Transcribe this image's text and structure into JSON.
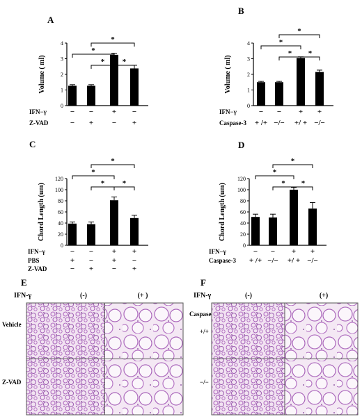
{
  "chart_data": [
    {
      "type": "bar",
      "panel": "A",
      "ylabel": "Volume ( ml)",
      "ylim": [
        0,
        4
      ],
      "yticks": [
        0,
        1,
        2,
        3,
        4
      ],
      "values": [
        1.27,
        1.27,
        3.25,
        2.38
      ],
      "errors": [
        0.07,
        0.07,
        0.1,
        0.2
      ],
      "rows": [
        {
          "label": "IFN−γ",
          "marks": [
            "−",
            "−",
            "+",
            "−"
          ]
        },
        {
          "label": "Z-VAD",
          "marks": [
            "−",
            "+",
            "−",
            "+"
          ]
        }
      ],
      "significance": [
        {
          "from": 0,
          "to": 2,
          "label": "*"
        },
        {
          "from": 1,
          "to": 2,
          "label": "*"
        },
        {
          "from": 2,
          "to": 3,
          "label": "*"
        },
        {
          "from": 1,
          "to": 3,
          "label": "*"
        }
      ]
    },
    {
      "type": "bar",
      "panel": "B",
      "ylabel": "Volume ( ml)",
      "ylim": [
        0,
        4
      ],
      "yticks": [
        0,
        1,
        2,
        3,
        4
      ],
      "values": [
        1.5,
        1.5,
        3.05,
        2.15
      ],
      "errors": [
        0.05,
        0.05,
        0.07,
        0.12
      ],
      "rows": [
        {
          "label": "IFN−γ",
          "marks": [
            "−",
            "−",
            "+",
            "+"
          ]
        },
        {
          "label": "Caspase-3",
          "marks": [
            "+ /+",
            "−/−",
            "+/ +",
            "−/−"
          ]
        }
      ],
      "significance": [
        {
          "from": 0,
          "to": 2,
          "label": "*"
        },
        {
          "from": 1,
          "to": 2,
          "label": "*"
        },
        {
          "from": 2,
          "to": 3,
          "label": "*"
        },
        {
          "from": 1,
          "to": 3,
          "label": "*"
        }
      ]
    },
    {
      "type": "bar",
      "panel": "C",
      "ylabel": "Chord Length (um)",
      "ylim": [
        0,
        120
      ],
      "yticks": [
        0,
        20,
        40,
        60,
        80,
        100,
        120
      ],
      "values": [
        39,
        38,
        81,
        49
      ],
      "errors": [
        3,
        4,
        6,
        5
      ],
      "rows": [
        {
          "label": "IFN−γ",
          "marks": [
            "−",
            "−",
            "+",
            "+"
          ]
        },
        {
          "label": "PBS",
          "marks": [
            "+",
            "−",
            "+",
            "−"
          ]
        },
        {
          "label": "Z-VAD",
          "marks": [
            "−",
            "+",
            "−",
            "+"
          ]
        }
      ],
      "significance": [
        {
          "from": 0,
          "to": 2,
          "label": "*"
        },
        {
          "from": 1,
          "to": 2,
          "label": "*"
        },
        {
          "from": 2,
          "to": 3,
          "label": "*"
        },
        {
          "from": 1,
          "to": 3,
          "label": "*"
        }
      ]
    },
    {
      "type": "bar",
      "panel": "D",
      "ylabel": "Chord Length (um)",
      "ylim": [
        0,
        120
      ],
      "yticks": [
        0,
        20,
        40,
        60,
        80,
        100,
        120
      ],
      "values": [
        51,
        50,
        100,
        66
      ],
      "errors": [
        5,
        6,
        4,
        11
      ],
      "rows": [
        {
          "label": "IFN−γ",
          "marks": [
            "−",
            "−",
            "+",
            "+"
          ]
        },
        {
          "label": "Caspase-3",
          "marks": [
            "+ /+",
            "−/−",
            "+/ +",
            "−/−"
          ]
        }
      ],
      "significance": [
        {
          "from": 0,
          "to": 2,
          "label": "*"
        },
        {
          "from": 1,
          "to": 2,
          "label": "*"
        },
        {
          "from": 2,
          "to": 3,
          "label": "*"
        },
        {
          "from": 1,
          "to": 3,
          "label": "*"
        }
      ]
    }
  ],
  "micrographs": [
    {
      "panel": "E",
      "header_label": "IFN-γ",
      "columns": [
        "(-)",
        "(+ )"
      ],
      "rows": [
        "Vehicle",
        "Z-VAD"
      ]
    },
    {
      "panel": "F",
      "header_label": "IFN-γ",
      "columns": [
        "(-)",
        "(+)"
      ],
      "rows": [
        "+/+",
        "−/−"
      ],
      "row_group_label": "Caspase-3"
    }
  ],
  "colors": {
    "bar": "#000000",
    "tissue": "#b070c0",
    "background": "#ffffff"
  }
}
